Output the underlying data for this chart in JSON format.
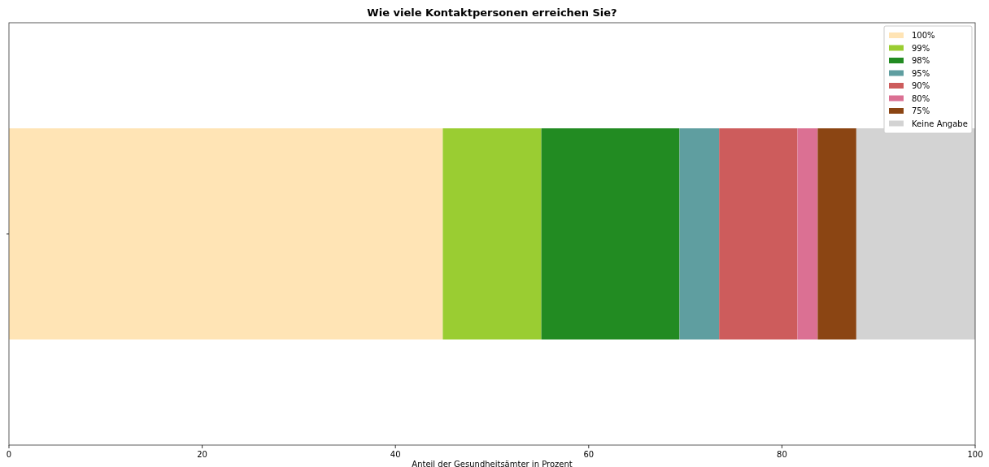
{
  "chart_data": {
    "type": "bar",
    "orientation": "horizontal",
    "stacked": true,
    "title": "Wie viele Kontaktpersonen erreichen Sie?",
    "xlabel": "Anteil der Gesundheitsämter in Prozent",
    "categories": [
      null
    ],
    "xlim": [
      0,
      100
    ],
    "xticks": [
      0,
      20,
      40,
      60,
      80,
      100
    ],
    "legend": "top right",
    "grid": false,
    "series": [
      {
        "name": "100%",
        "color": "#ffe4b5",
        "values": [
          44.9
        ]
      },
      {
        "name": "99%",
        "color": "#9acd32",
        "values": [
          10.2
        ]
      },
      {
        "name": "98%",
        "color": "#228b22",
        "values": [
          14.3
        ]
      },
      {
        "name": "95%",
        "color": "#5f9ea0",
        "values": [
          4.1
        ]
      },
      {
        "name": "90%",
        "color": "#cd5c5c",
        "values": [
          8.1
        ]
      },
      {
        "name": "80%",
        "color": "#db7093",
        "values": [
          2.1
        ]
      },
      {
        "name": "75%",
        "color": "#8b4513",
        "values": [
          4.0
        ]
      },
      {
        "name": "Keine Angabe",
        "color": "#d3d3d3",
        "values": [
          12.3
        ]
      }
    ]
  }
}
